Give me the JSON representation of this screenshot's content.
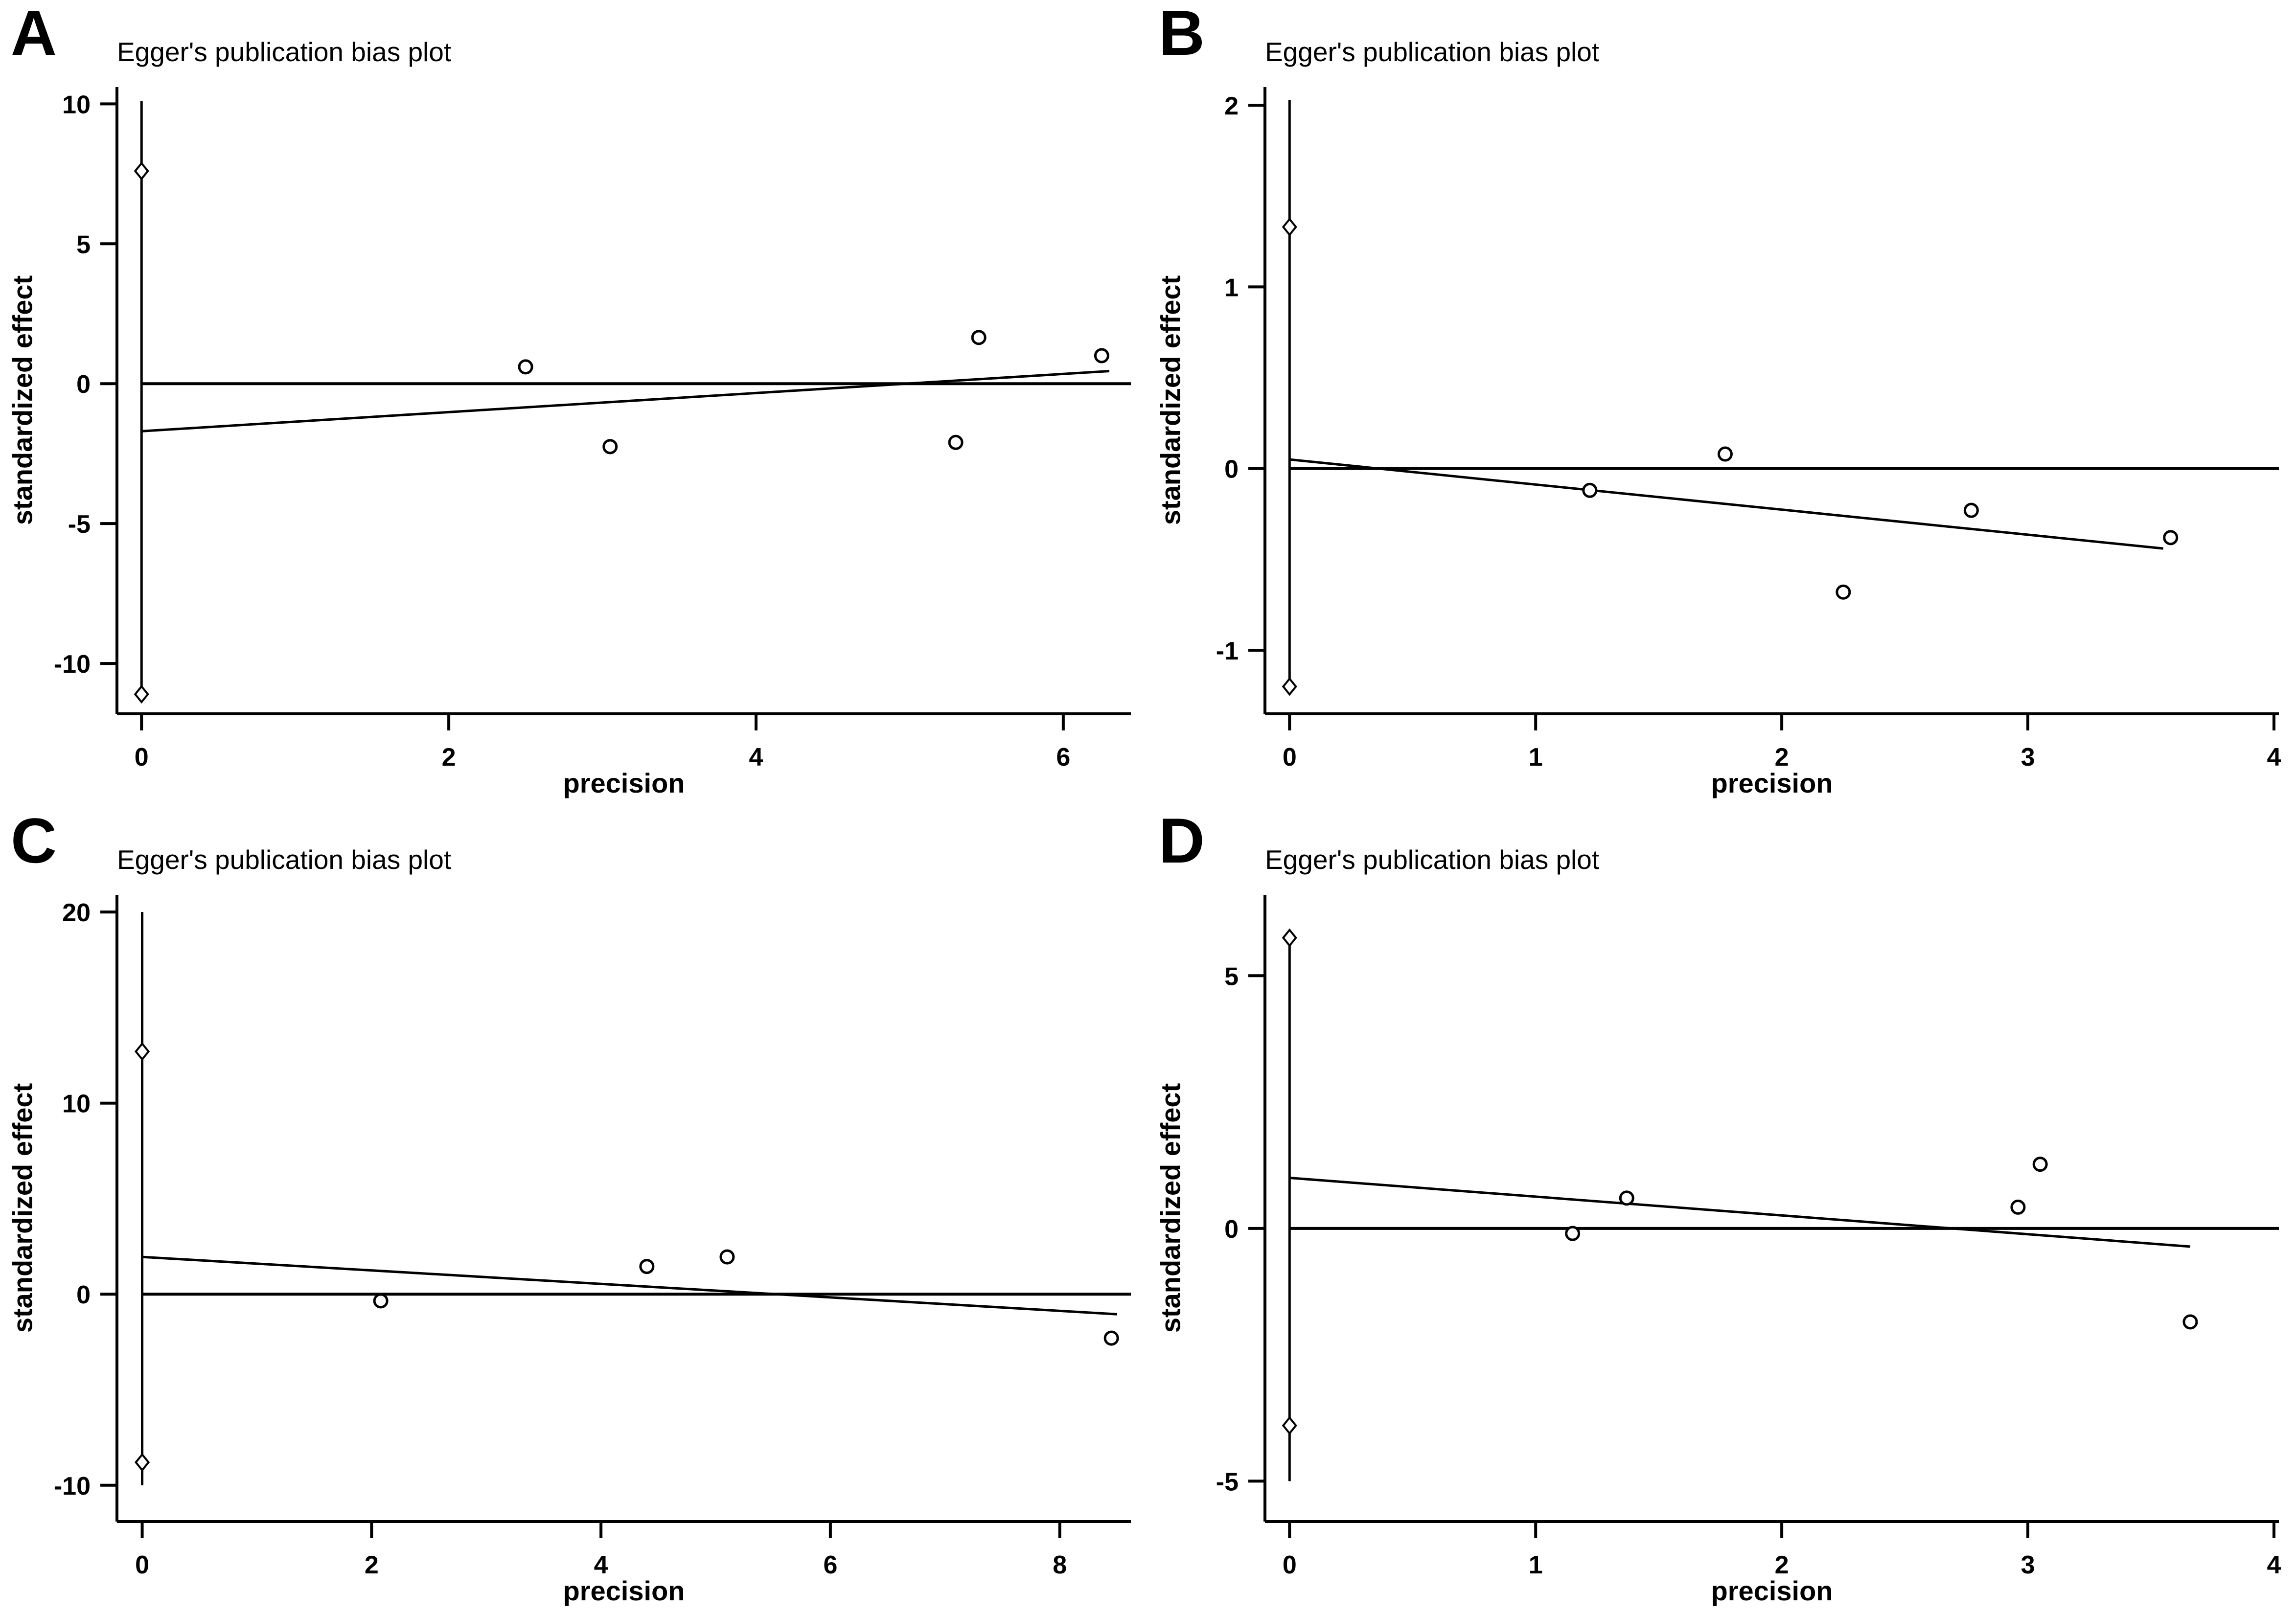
{
  "colors": {
    "background": "#ffffff",
    "ink": "#000000"
  },
  "chart_data": [
    {
      "panel_label": "A",
      "type": "scatter",
      "title": "Egger's publication bias plot",
      "xlabel": "precision",
      "ylabel": "standardized effect",
      "xlim": [
        -0.16,
        6.44
      ],
      "ylim": [
        -11.8,
        10.6
      ],
      "xticks": [
        0,
        2,
        4,
        6
      ],
      "yticks": [
        -10,
        -5,
        0,
        5,
        10
      ],
      "grid": false,
      "legend": "none",
      "points": [
        [
          2.5,
          0.6
        ],
        [
          3.05,
          -2.25
        ],
        [
          5.3,
          -2.1
        ],
        [
          5.45,
          1.65
        ],
        [
          6.25,
          1.0
        ]
      ],
      "regression_line": {
        "x": [
          0,
          6.3
        ],
        "y": [
          -1.7,
          0.45
        ]
      },
      "horizontal_zero_line": true,
      "intercept_ci_line": {
        "x": 0,
        "from": -11.15,
        "to": 10.1
      },
      "ci_diamond_markers_y": [
        7.6,
        -11.1
      ]
    },
    {
      "panel_label": "B",
      "type": "scatter",
      "title": "Egger's publication bias plot",
      "xlabel": "precision",
      "ylabel": "standardized effect",
      "xlim": [
        -0.1,
        4.02
      ],
      "ylim": [
        -1.35,
        2.1
      ],
      "xticks": [
        0,
        1,
        2,
        3,
        4
      ],
      "yticks": [
        -1,
        0,
        1,
        2
      ],
      "grid": false,
      "legend": "none",
      "points": [
        [
          1.22,
          -0.12
        ],
        [
          1.77,
          0.08
        ],
        [
          2.25,
          -0.68
        ],
        [
          2.77,
          -0.23
        ],
        [
          3.58,
          -0.38
        ]
      ],
      "regression_line": {
        "x": [
          0,
          3.55
        ],
        "y": [
          0.05,
          -0.44
        ]
      },
      "horizontal_zero_line": true,
      "intercept_ci_line": {
        "x": 0,
        "from": -1.2,
        "to": 2.03
      },
      "ci_diamond_markers_y": [
        1.33,
        -1.2
      ]
    },
    {
      "panel_label": "C",
      "type": "scatter",
      "title": "Egger's publication bias plot",
      "xlabel": "precision",
      "ylabel": "standardized effect",
      "xlim": [
        -0.22,
        8.62
      ],
      "ylim": [
        -11.9,
        20.9
      ],
      "xticks": [
        0,
        2,
        4,
        6,
        8
      ],
      "yticks": [
        -10,
        0,
        10,
        20
      ],
      "grid": false,
      "legend": "none",
      "points": [
        [
          2.08,
          -0.35
        ],
        [
          4.4,
          1.45
        ],
        [
          5.1,
          1.95
        ],
        [
          8.45,
          -2.3
        ]
      ],
      "regression_line": {
        "x": [
          0,
          8.5
        ],
        "y": [
          1.95,
          -1.05
        ]
      },
      "horizontal_zero_line": true,
      "intercept_ci_line": {
        "x": 0,
        "from": -10.0,
        "to": 20.0
      },
      "ci_diamond_markers_y": [
        12.7,
        -8.8
      ]
    },
    {
      "panel_label": "D",
      "type": "scatter",
      "title": "Egger's publication bias plot",
      "xlabel": "precision",
      "ylabel": "standardized effect",
      "xlim": [
        -0.1,
        4.02
      ],
      "ylim": [
        -5.8,
        6.6
      ],
      "xticks": [
        0,
        1,
        2,
        3,
        4
      ],
      "yticks": [
        -5,
        0,
        5
      ],
      "grid": false,
      "legend": "none",
      "points": [
        [
          1.15,
          -0.1
        ],
        [
          1.37,
          0.6
        ],
        [
          2.96,
          0.42
        ],
        [
          3.05,
          1.27
        ],
        [
          3.66,
          -1.85
        ]
      ],
      "regression_line": {
        "x": [
          0,
          3.66
        ],
        "y": [
          1.0,
          -0.36
        ]
      },
      "horizontal_zero_line": true,
      "intercept_ci_line": {
        "x": 0,
        "from": -5.0,
        "to": 5.75
      },
      "ci_diamond_markers_y": [
        5.75,
        -3.9
      ]
    }
  ]
}
